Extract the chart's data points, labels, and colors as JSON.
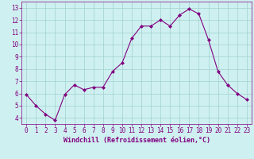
{
  "x": [
    0,
    1,
    2,
    3,
    4,
    5,
    6,
    7,
    8,
    9,
    10,
    11,
    12,
    13,
    14,
    15,
    16,
    17,
    18,
    19,
    20,
    21,
    22,
    23
  ],
  "y": [
    5.9,
    5.0,
    4.3,
    3.8,
    5.9,
    6.7,
    6.3,
    6.5,
    6.5,
    7.8,
    8.5,
    10.5,
    11.5,
    11.5,
    12.0,
    11.5,
    12.4,
    12.9,
    12.5,
    10.4,
    7.8,
    6.7,
    6.0,
    5.5
  ],
  "line_color": "#800080",
  "marker": "D",
  "marker_size": 2,
  "bg_color": "#cff0f0",
  "grid_color": "#a0d0d0",
  "xlabel": "Windchill (Refroidissement éolien,°C)",
  "xlabel_color": "#800080",
  "tick_color": "#800080",
  "ylim": [
    3.5,
    13.5
  ],
  "yticks": [
    4,
    5,
    6,
    7,
    8,
    9,
    10,
    11,
    12,
    13
  ],
  "xticks": [
    0,
    1,
    2,
    3,
    4,
    5,
    6,
    7,
    8,
    9,
    10,
    11,
    12,
    13,
    14,
    15,
    16,
    17,
    18,
    19,
    20,
    21,
    22,
    23
  ],
  "xlim": [
    -0.5,
    23.5
  ],
  "spine_color": "#800080",
  "tick_fontsize": 5.5,
  "xlabel_fontsize": 6.0
}
